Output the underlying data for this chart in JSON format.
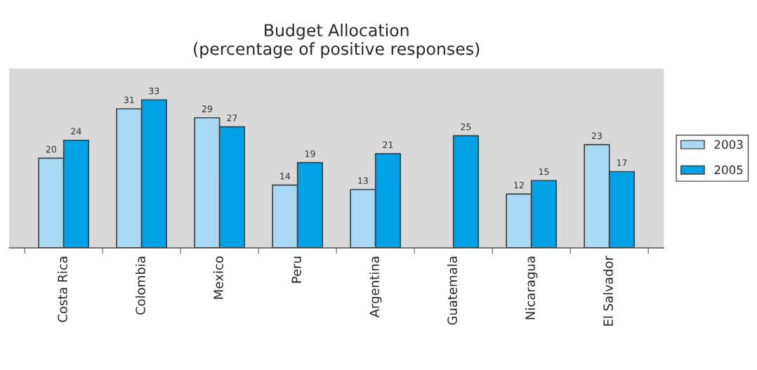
{
  "chart_data": {
    "type": "bar",
    "title": "Budget Allocation\n(percentage of positive responses)",
    "categories": [
      "Costa Rica",
      "Colombia",
      "Mexico",
      "Peru",
      "Argentina",
      "Guatemala",
      "Nicaragua",
      "El Salvador"
    ],
    "series": [
      {
        "name": "2003",
        "color": "#a8d8f4",
        "values": [
          20,
          31,
          29,
          14,
          13,
          null,
          12,
          23
        ]
      },
      {
        "name": "2005",
        "color": "#00a2e6",
        "values": [
          24,
          33,
          27,
          19,
          21,
          25,
          15,
          17
        ]
      }
    ],
    "ylim": [
      0,
      40
    ],
    "data_labels": true,
    "legend": "right",
    "grid": false,
    "tick_labels": "x"
  }
}
